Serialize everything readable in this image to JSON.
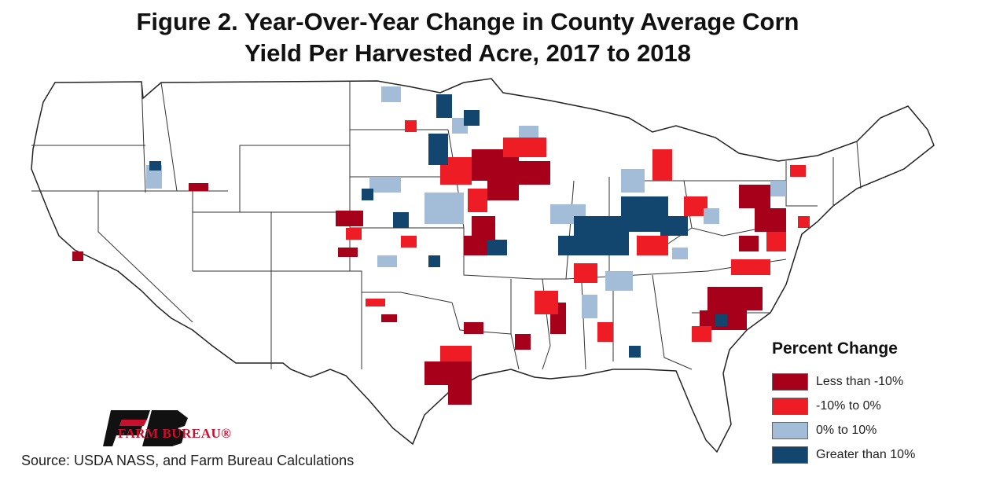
{
  "title": {
    "line1": "Figure 2. Year-Over-Year Change in County Average Corn",
    "line2": "Yield Per Harvested Acre, 2017 to 2018"
  },
  "legend": {
    "title": "Percent Change",
    "items": [
      {
        "label": "Less than -10%",
        "color": "#a6001a"
      },
      {
        "label": "-10% to 0%",
        "color": "#ee1c25"
      },
      {
        "label": "0% to 10%",
        "color": "#a3bcd8"
      },
      {
        "label": "Greater than 10%",
        "color": "#13466f"
      }
    ]
  },
  "logo": {
    "text": "FARM BUREAU®"
  },
  "source": "Source: USDA NASS, and Farm Bureau Calculations",
  "colors": {
    "outline": "#222222",
    "land": "#ffffff",
    "logo_black": "#111111",
    "logo_red": "#c8102e"
  }
}
